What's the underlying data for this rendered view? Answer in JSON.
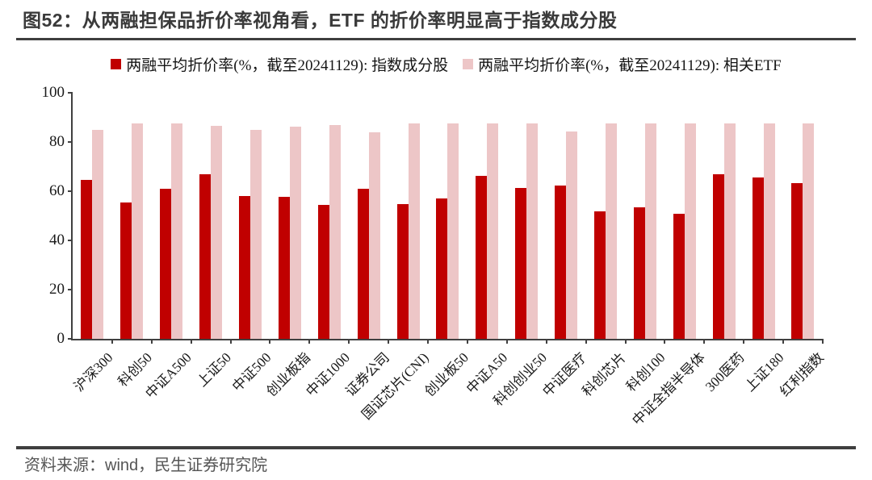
{
  "header": {
    "title": "图52：从两融担保品折价率视角看，ETF 的折价率明显高于指数成分股"
  },
  "footer": {
    "source": "资料来源：wind，民生证券研究院"
  },
  "chart_data": {
    "type": "bar",
    "title": "",
    "xlabel": "",
    "ylabel": "",
    "ylim": [
      0,
      100
    ],
    "yticks": [
      0,
      20,
      40,
      60,
      80,
      100
    ],
    "grid": false,
    "legend_position": "top",
    "categories": [
      "沪深300",
      "科创50",
      "中证A500",
      "上证50",
      "中证500",
      "创业板指",
      "中证1000",
      "证券公司",
      "国证芯片(CNI)",
      "创业板50",
      "中证A50",
      "科创创业50",
      "中证医疗",
      "科创芯片",
      "科创100",
      "中证全指半导体",
      "300医药",
      "上证180",
      "红利指数"
    ],
    "series": [
      {
        "name": "两融平均折价率(%，截至20241129): 指数成分股",
        "color": "#C00000",
        "values": [
          64.7,
          55.4,
          61.0,
          66.8,
          58.0,
          57.6,
          54.5,
          61.0,
          54.8,
          57.1,
          66.2,
          61.2,
          62.3,
          51.7,
          53.4,
          50.9,
          66.8,
          65.7,
          63.4
        ]
      },
      {
        "name": "两融平均折价率(%，截至20241129): 相关ETF",
        "color": "#EDC6C7",
        "values": [
          85.0,
          87.6,
          87.6,
          86.5,
          85.0,
          86.2,
          86.9,
          83.9,
          87.5,
          87.6,
          87.6,
          87.6,
          84.2,
          87.5,
          87.5,
          87.5,
          87.5,
          87.5,
          87.5
        ]
      }
    ]
  }
}
